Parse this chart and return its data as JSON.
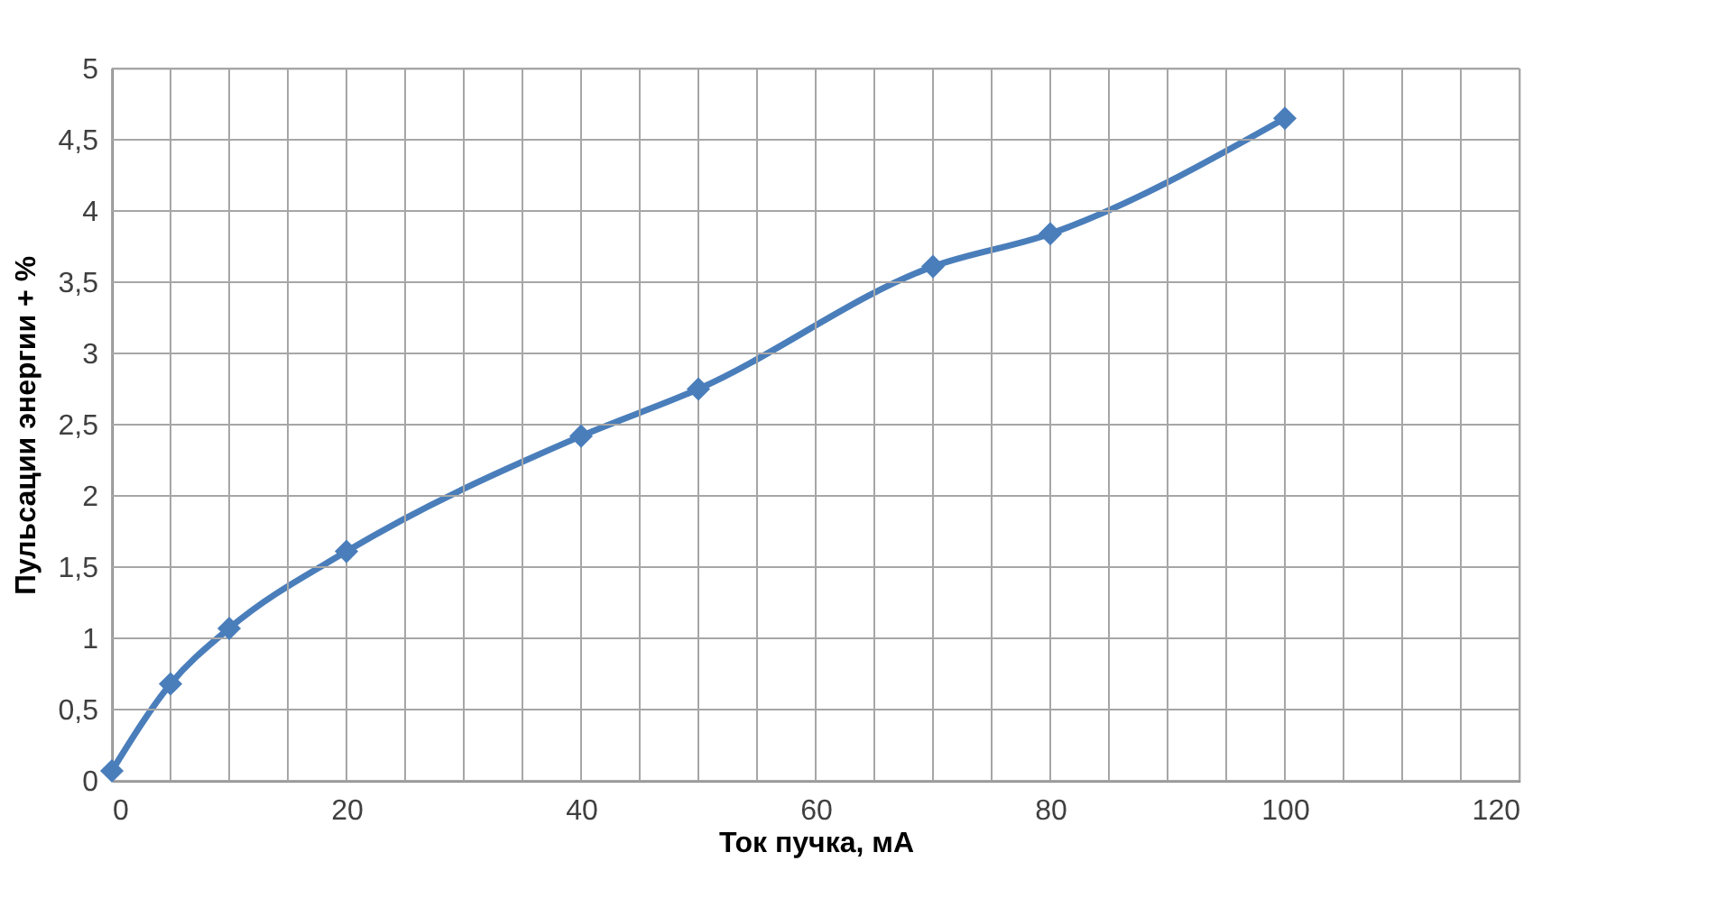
{
  "chart_data": {
    "type": "line",
    "xlabel": "Ток пучка, мА",
    "ylabel": "Пульсации энергии + %",
    "x": [
      0,
      5,
      10,
      20,
      40,
      50,
      70,
      80,
      100
    ],
    "series": [
      {
        "color": "#4a7ebb",
        "values": [
          0.07,
          0.68,
          1.07,
          1.61,
          2.42,
          2.75,
          3.61,
          3.84,
          4.65
        ]
      }
    ],
    "xlim": [
      0,
      120
    ],
    "xticks": [
      0,
      {
        "value": 5,
        "label": null
      },
      {
        "value": 10,
        "label": null
      },
      {
        "value": 15,
        "label": null
      },
      20,
      {
        "value": 25,
        "label": null
      },
      {
        "value": 30,
        "label": null
      },
      {
        "value": 35,
        "label": null
      },
      40,
      {
        "value": 45,
        "label": null
      },
      {
        "value": 50,
        "label": null
      },
      {
        "value": 55,
        "label": null
      },
      60,
      {
        "value": 65,
        "label": null
      },
      {
        "value": 70,
        "label": null
      },
      {
        "value": 75,
        "label": null
      },
      80,
      {
        "value": 85,
        "label": null
      },
      {
        "value": 90,
        "label": null
      },
      {
        "value": 95,
        "label": null
      },
      100,
      {
        "value": 105,
        "label": null
      },
      {
        "value": 110,
        "label": null
      },
      {
        "value": 115,
        "label": null
      },
      120
    ],
    "ylim": [
      0,
      5
    ],
    "yticks": [
      0,
      {
        "value": 0.5,
        "label": "0,5"
      },
      1,
      {
        "value": 1.5,
        "label": "1,5"
      },
      2,
      {
        "value": 2.5,
        "label": "2,5"
      },
      3,
      {
        "value": 3.5,
        "label": "3,5"
      },
      4,
      {
        "value": 4.5,
        "label": "4,5"
      },
      5
    ],
    "grid": true,
    "marker": "diamond",
    "line_style": "solid",
    "legend": false
  }
}
